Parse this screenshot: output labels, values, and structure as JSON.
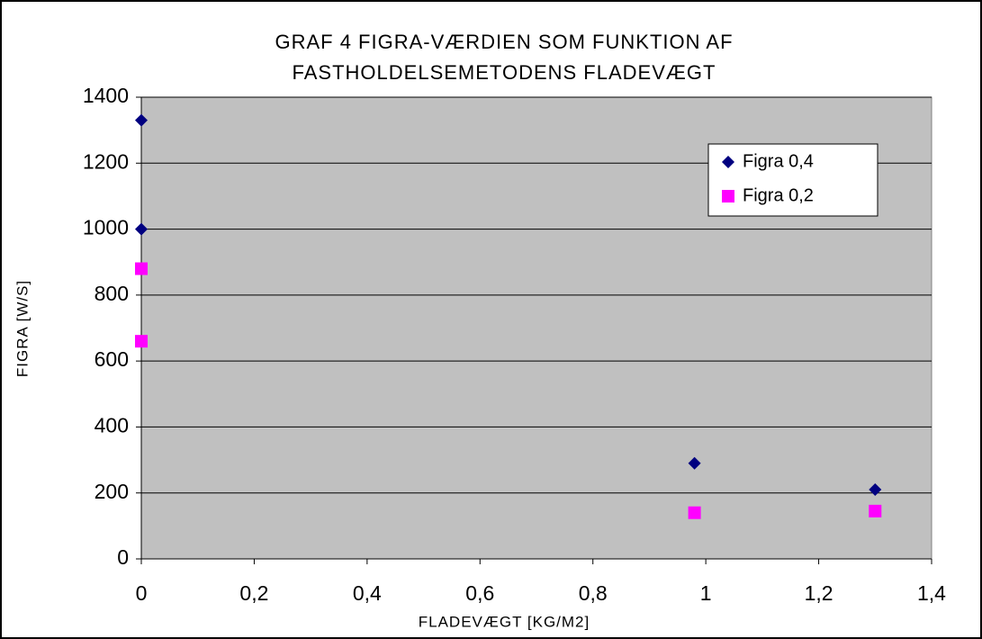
{
  "chart_data": {
    "type": "scatter",
    "title": [
      "GRAF 4 FIGRA-VÆRDIEN SOM FUNKTION AF",
      "FASTHOLDELSEMETODENS FLADEVÆGT"
    ],
    "x_label": "FLADEVÆGT [KG/M2]",
    "y_label": "FIGRA [W/S]",
    "series": [
      {
        "name": "Figra 0,4",
        "color": "#000080",
        "marker": "diamond",
        "x": [
          0,
          0,
          0.98,
          1.3
        ],
        "values": [
          1330,
          1000,
          290,
          210
        ]
      },
      {
        "name": "Figra 0,2",
        "color": "#ff00ff",
        "marker": "square",
        "x": [
          0,
          0,
          0.98,
          1.3
        ],
        "values": [
          880,
          660,
          140,
          145
        ]
      }
    ],
    "xlim": [
      0,
      1.4
    ],
    "xticks": [
      0,
      {
        "value": 0.2,
        "label": "0,2"
      },
      {
        "value": 0.4,
        "label": "0,4"
      },
      {
        "value": 0.6,
        "label": "0,6"
      },
      {
        "value": 0.8,
        "label": "0,8"
      },
      1,
      {
        "value": 1.2,
        "label": "1,2"
      },
      {
        "value": 1.4,
        "label": "1,4"
      }
    ],
    "ylim": [
      0,
      1400
    ],
    "yticks": [
      0,
      200,
      400,
      600,
      800,
      1000,
      1200,
      1400
    ],
    "grid": true,
    "legend": "top-right",
    "plot_background": "#c0c0c0"
  }
}
